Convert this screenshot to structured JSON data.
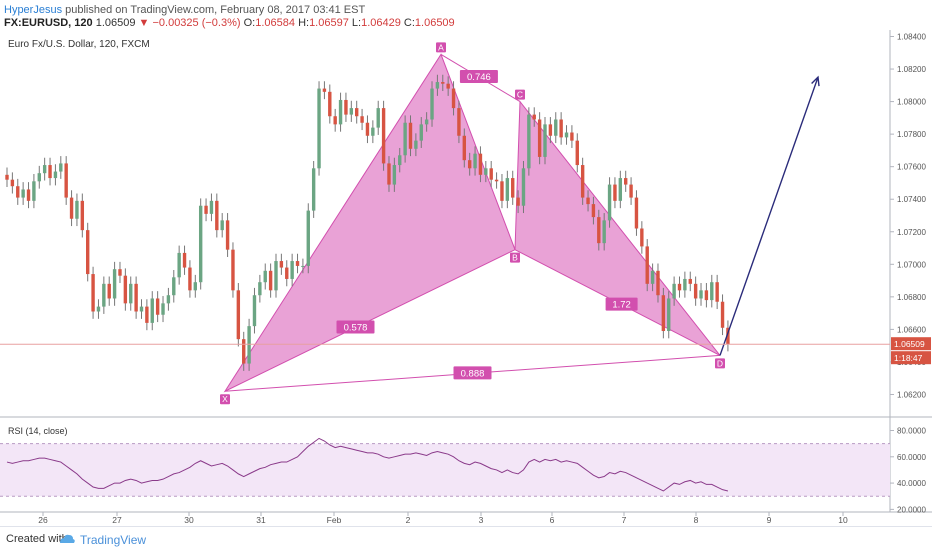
{
  "header": {
    "author": "HyperJesus",
    "published": " published on TradingView.com, February 08, 2017 03:41 EST",
    "symbol": "FX:EURUSD, 120",
    "last": "1.06509",
    "change": "▼ −0.00325 (−0.3%)",
    "o_label": "O:",
    "o": "1.06584",
    "h_label": "H:",
    "h": "1.06597",
    "l_label": "L:",
    "l": "1.06429",
    "c_label": "C:",
    "c": "1.06509"
  },
  "footer": {
    "created": "Created with",
    "brand": "TradingView"
  },
  "chart_data": [
    {
      "type": "candlestick",
      "title": "Euro Fx/U.S. Dollar, 120, FXCM",
      "x_tick_labels": [
        "26",
        "27",
        "30",
        "31",
        "Feb",
        "2",
        "3",
        "6",
        "7",
        "8",
        "9",
        "10"
      ],
      "y_tick_labels": [
        "1.06200",
        "1.06400",
        "1.06600",
        "1.06800",
        "1.07000",
        "1.07200",
        "1.07400",
        "1.07600",
        "1.07800",
        "1.08000",
        "1.08200",
        "1.08400"
      ],
      "ylim": [
        1.0608,
        1.0844
      ],
      "candle_closes": [
        1.0752,
        1.0748,
        1.0741,
        1.0746,
        1.0739,
        1.0751,
        1.0756,
        1.0761,
        1.0753,
        1.0757,
        1.0762,
        1.0741,
        1.0728,
        1.0739,
        1.0721,
        1.0694,
        1.0671,
        1.0674,
        1.0688,
        1.0679,
        1.0697,
        1.0693,
        1.0676,
        1.0688,
        1.0671,
        1.0674,
        1.0664,
        1.0679,
        1.0669,
        1.0676,
        1.0681,
        1.0692,
        1.0707,
        1.0698,
        1.0684,
        1.0689,
        1.0736,
        1.0731,
        1.0739,
        1.0721,
        1.0727,
        1.0709,
        1.0684,
        1.0654,
        1.0639,
        1.0662,
        1.0681,
        1.0689,
        1.0696,
        1.0684,
        1.0702,
        1.0698,
        1.0691,
        1.0702,
        1.0699,
        1.0699,
        1.0733,
        1.0759,
        1.0808,
        1.0806,
        1.0791,
        1.0786,
        1.0801,
        1.0792,
        1.0796,
        1.0791,
        1.0787,
        1.0779,
        1.0784,
        1.0796,
        1.0762,
        1.0749,
        1.0761,
        1.0767,
        1.0787,
        1.0771,
        1.0776,
        1.0786,
        1.0789,
        1.0808,
        1.0812,
        1.0811,
        1.0808,
        1.0796,
        1.0779,
        1.0764,
        1.0759,
        1.0768,
        1.0755,
        1.0759,
        1.0752,
        1.0751,
        1.0739,
        1.0753,
        1.0741,
        1.0736,
        1.0759,
        1.0792,
        1.0789,
        1.0766,
        1.0786,
        1.0779,
        1.0789,
        1.0778,
        1.0781,
        1.0776,
        1.0761,
        1.0741,
        1.0737,
        1.0729,
        1.0713,
        1.0727,
        1.0749,
        1.0739,
        1.0753,
        1.0749,
        1.0741,
        1.0722,
        1.0711,
        1.0688,
        1.0696,
        1.0681,
        1.0659,
        1.0679,
        1.0688,
        1.0684,
        1.0691,
        1.0688,
        1.0679,
        1.0684,
        1.0678,
        1.0689,
        1.0677,
        1.0661,
        1.0651
      ],
      "last_price_label": "1.06509",
      "countdown_label": "1:18:47",
      "harmonic_pattern": {
        "points": [
          {
            "label": "X",
            "price": 1.0622
          },
          {
            "label": "A",
            "price": 1.0829
          },
          {
            "label": "B",
            "price": 1.0709
          },
          {
            "label": "C",
            "price": 1.08
          },
          {
            "label": "D",
            "price": 1.0644
          }
        ],
        "ratios": [
          {
            "label": "0.578",
            "between": "XA-AB"
          },
          {
            "label": "0.746",
            "between": "AB-BC"
          },
          {
            "label": "1.72",
            "between": "BC-CD"
          },
          {
            "label": "0.888",
            "between": "XA-XD"
          }
        ],
        "projection_arrow": {
          "from_price": 1.0644,
          "to_price": 1.0815
        }
      }
    },
    {
      "type": "line",
      "title": "RSI (14, close)",
      "y_tick_labels": [
        "20.0000",
        "40.0000",
        "60.0000",
        "80.0000"
      ],
      "ylim": [
        18,
        88
      ],
      "band": [
        30,
        70
      ],
      "values": [
        56,
        55,
        56,
        57,
        57,
        58,
        59,
        59,
        58,
        57,
        56,
        53,
        50,
        47,
        43,
        40,
        37,
        36,
        36,
        38,
        40,
        40,
        42,
        43,
        42,
        40,
        41,
        42,
        42,
        43,
        45,
        47,
        48,
        50,
        52,
        55,
        57,
        55,
        53,
        54,
        55,
        53,
        50,
        47,
        45,
        47,
        49,
        51,
        52,
        54,
        55,
        56,
        56,
        58,
        60,
        64,
        68,
        71,
        74,
        72,
        69,
        67,
        68,
        67,
        66,
        65,
        64,
        63,
        63,
        62,
        60,
        59,
        60,
        61,
        62,
        62,
        63,
        62,
        61,
        63,
        64,
        63,
        62,
        60,
        57,
        55,
        54,
        56,
        55,
        53,
        51,
        50,
        48,
        50,
        48,
        47,
        50,
        56,
        58,
        56,
        58,
        57,
        58,
        56,
        57,
        56,
        55,
        52,
        49,
        46,
        44,
        45,
        48,
        47,
        49,
        48,
        46,
        44,
        42,
        40,
        38,
        36,
        34,
        37,
        40,
        39,
        41,
        42,
        40,
        41,
        39,
        39,
        37,
        35,
        34
      ]
    }
  ]
}
